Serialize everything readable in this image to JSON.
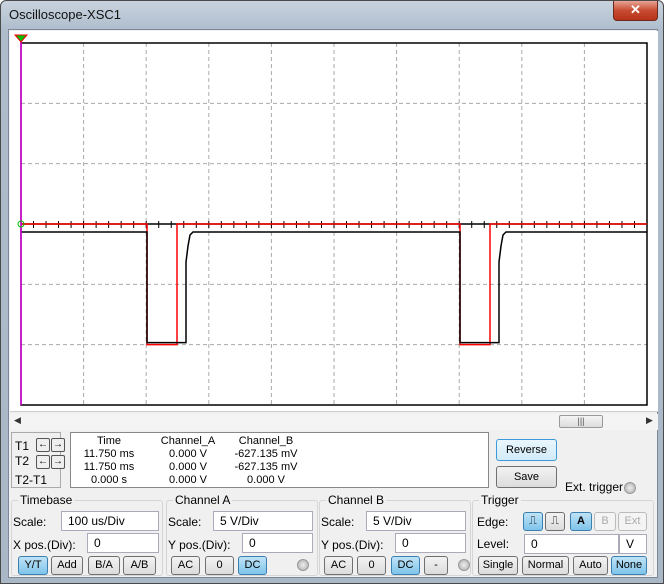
{
  "window": {
    "title": "Oscilloscope-XSC1",
    "close_icon": "close-icon"
  },
  "colors": {
    "channel_a": "#ff0000",
    "channel_b": "#000000",
    "cursor1": "#e000e0",
    "cursor_marker": "#00c000",
    "accent": "#7fc4ea"
  },
  "readout": {
    "cursor_labels": [
      "T1",
      "T2",
      "T2-T1"
    ],
    "headers": [
      "Time",
      "Channel_A",
      "Channel_B"
    ],
    "rows": [
      [
        "11.750 ms",
        "0.000 V",
        "-627.135 mV"
      ],
      [
        "11.750 ms",
        "0.000 V",
        "-627.135 mV"
      ],
      [
        "0.000 s",
        "0.000 V",
        "0.000 V"
      ]
    ]
  },
  "buttons": {
    "reverse": "Reverse",
    "save": "Save",
    "ext_trigger": "Ext. trigger"
  },
  "timebase": {
    "title": "Timebase",
    "scale_label": "Scale:",
    "scale": "100 us/Div",
    "xpos_label": "X pos.(Div):",
    "xpos": "0",
    "modes": [
      "Y/T",
      "Add",
      "B/A",
      "A/B"
    ],
    "active_mode": "Y/T"
  },
  "channel_a": {
    "title": "Channel A",
    "scale_label": "Scale:",
    "scale": "5  V/Div",
    "ypos_label": "Y pos.(Div):",
    "ypos": "0",
    "coupling": [
      "AC",
      "0",
      "DC"
    ],
    "active": "DC"
  },
  "channel_b": {
    "title": "Channel B",
    "scale_label": "Scale:",
    "scale": "5  V/Div",
    "ypos_label": "Y pos.(Div):",
    "ypos": "0",
    "coupling": [
      "AC",
      "0",
      "DC",
      "-"
    ],
    "active": "DC"
  },
  "trigger": {
    "title": "Trigger",
    "edge_label": "Edge:",
    "sources": [
      "A",
      "B",
      "Ext"
    ],
    "active_source": "A",
    "level_label": "Level:",
    "level": "0",
    "level_unit": "V",
    "modes": [
      "Single",
      "Normal",
      "Auto",
      "None"
    ],
    "active_mode": "None"
  }
}
